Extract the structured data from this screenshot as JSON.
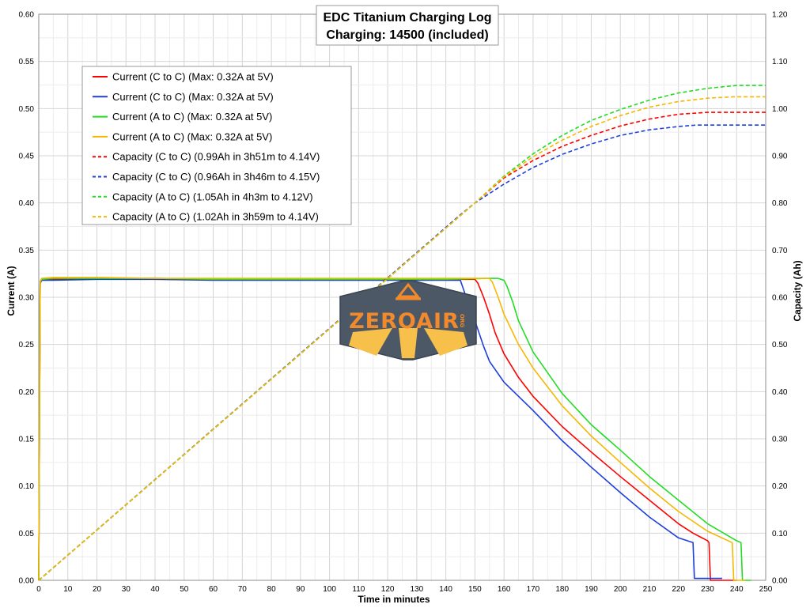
{
  "chart_data": {
    "type": "line",
    "title": [
      "EDC Titanium Charging Log",
      "Charging: 14500 (included)"
    ],
    "xlabel": "Time in minutes",
    "ylabel_left": "Current (A)",
    "ylabel_right": "Capacity (Ah)",
    "xlim": [
      0,
      250
    ],
    "ylim_left": [
      0,
      0.6
    ],
    "ylim_right": [
      0,
      1.2
    ],
    "x_ticks": [
      0,
      10,
      20,
      30,
      40,
      50,
      60,
      70,
      80,
      90,
      100,
      110,
      120,
      130,
      140,
      150,
      160,
      170,
      180,
      190,
      200,
      210,
      220,
      230,
      240,
      250
    ],
    "y_ticks_left": [
      "0.00",
      "0.05",
      "0.10",
      "0.15",
      "0.20",
      "0.25",
      "0.30",
      "0.35",
      "0.40",
      "0.45",
      "0.50",
      "0.55",
      "0.60"
    ],
    "y_ticks_right": [
      "0.00",
      "0.10",
      "0.20",
      "0.30",
      "0.40",
      "0.50",
      "0.60",
      "0.70",
      "0.80",
      "0.90",
      "1.00",
      "1.10",
      "1.20"
    ],
    "grid": true,
    "legend_position": "top-left",
    "series": [
      {
        "name": "Current (C to C) (Max: 0.32A at 5V)",
        "axis": "left",
        "color": "#ff0000",
        "dash": false,
        "x": [
          0,
          0.5,
          1,
          5,
          20,
          40,
          60,
          80,
          100,
          120,
          140,
          150,
          151,
          153,
          155,
          157,
          160,
          165,
          170,
          180,
          190,
          200,
          210,
          220,
          225,
          230,
          230.5,
          231,
          240
        ],
        "y": [
          0,
          0.315,
          0.318,
          0.319,
          0.32,
          0.32,
          0.319,
          0.319,
          0.319,
          0.319,
          0.319,
          0.319,
          0.315,
          0.3,
          0.282,
          0.262,
          0.24,
          0.215,
          0.195,
          0.163,
          0.136,
          0.11,
          0.085,
          0.06,
          0.05,
          0.042,
          0.04,
          0,
          0
        ]
      },
      {
        "name": "Current (C to C) (Max: 0.32A at 5V)",
        "axis": "left",
        "color": "#1f3fdc",
        "dash": false,
        "x": [
          0,
          0.5,
          1,
          5,
          20,
          40,
          60,
          80,
          100,
          120,
          140,
          145,
          147,
          150,
          153,
          155,
          160,
          170,
          180,
          190,
          200,
          210,
          220,
          225,
          225.5,
          226,
          235
        ],
        "y": [
          0,
          0.315,
          0.318,
          0.318,
          0.319,
          0.319,
          0.318,
          0.318,
          0.318,
          0.318,
          0.318,
          0.318,
          0.3,
          0.275,
          0.248,
          0.232,
          0.21,
          0.18,
          0.148,
          0.12,
          0.093,
          0.067,
          0.045,
          0.04,
          0.002,
          0.002,
          0.002
        ]
      },
      {
        "name": "Current (A to C) (Max: 0.32A at 5V)",
        "axis": "left",
        "color": "#22dd22",
        "dash": false,
        "x": [
          0,
          0.5,
          1,
          5,
          20,
          40,
          60,
          80,
          100,
          120,
          140,
          155,
          158,
          160,
          161,
          163,
          165,
          170,
          180,
          190,
          200,
          210,
          220,
          230,
          240,
          241.5,
          242,
          245
        ],
        "y": [
          0,
          0.316,
          0.319,
          0.32,
          0.32,
          0.32,
          0.319,
          0.319,
          0.319,
          0.319,
          0.319,
          0.32,
          0.32,
          0.318,
          0.312,
          0.295,
          0.275,
          0.242,
          0.198,
          0.165,
          0.138,
          0.11,
          0.085,
          0.06,
          0.042,
          0.04,
          0,
          0
        ]
      },
      {
        "name": "Current (A to C) (Max: 0.32A at 5V)",
        "axis": "left",
        "color": "#f5b800",
        "dash": false,
        "x": [
          0,
          0.5,
          1,
          5,
          20,
          40,
          60,
          80,
          100,
          120,
          140,
          150,
          155,
          156,
          158,
          160,
          165,
          170,
          180,
          190,
          200,
          210,
          220,
          230,
          238.5,
          239,
          243
        ],
        "y": [
          0,
          0.317,
          0.32,
          0.321,
          0.321,
          0.32,
          0.32,
          0.32,
          0.32,
          0.32,
          0.32,
          0.32,
          0.32,
          0.316,
          0.3,
          0.282,
          0.25,
          0.225,
          0.185,
          0.153,
          0.125,
          0.098,
          0.073,
          0.052,
          0.04,
          0,
          0
        ]
      },
      {
        "name": "Capacity (C to C) (0.99Ah in 3h51m to 4.14V)",
        "axis": "right",
        "color": "#ff0000",
        "dash": true,
        "x": [
          0,
          150,
          160,
          170,
          180,
          190,
          200,
          210,
          220,
          230,
          240,
          250
        ],
        "y": [
          0,
          0.8,
          0.853,
          0.89,
          0.92,
          0.943,
          0.963,
          0.978,
          0.988,
          0.992,
          0.992,
          0.992
        ]
      },
      {
        "name": "Capacity (C to C) (0.96Ah in 3h46m to 4.15V)",
        "axis": "right",
        "color": "#1f3fdc",
        "dash": true,
        "x": [
          0,
          145,
          150,
          160,
          170,
          180,
          190,
          200,
          210,
          220,
          226,
          240,
          250
        ],
        "y": [
          0,
          0.775,
          0.8,
          0.84,
          0.875,
          0.903,
          0.925,
          0.943,
          0.955,
          0.962,
          0.965,
          0.965,
          0.965
        ]
      },
      {
        "name": "Capacity (A to C) (1.05Ah in 4h3m to 4.12V)",
        "axis": "right",
        "color": "#22dd22",
        "dash": true,
        "x": [
          0,
          150,
          160,
          170,
          180,
          190,
          200,
          210,
          220,
          230,
          240,
          250
        ],
        "y": [
          0,
          0.8,
          0.857,
          0.904,
          0.943,
          0.975,
          0.998,
          1.018,
          1.033,
          1.043,
          1.049,
          1.049
        ]
      },
      {
        "name": "Capacity (A to C) (1.02Ah in 3h59m to 4.14V)",
        "axis": "right",
        "color": "#f5b800",
        "dash": true,
        "x": [
          0,
          150,
          160,
          170,
          180,
          190,
          200,
          210,
          220,
          230,
          239,
          245,
          250
        ],
        "y": [
          0,
          0.8,
          0.855,
          0.898,
          0.933,
          0.962,
          0.985,
          1.003,
          1.015,
          1.022,
          1.025,
          1.025,
          1.025
        ]
      }
    ]
  },
  "watermark": {
    "text": "ZEROAIR",
    "suffix": "ORG",
    "colors": {
      "badge": "#4c5866",
      "text": "#f08a2c",
      "road": "#f7c04a"
    }
  }
}
